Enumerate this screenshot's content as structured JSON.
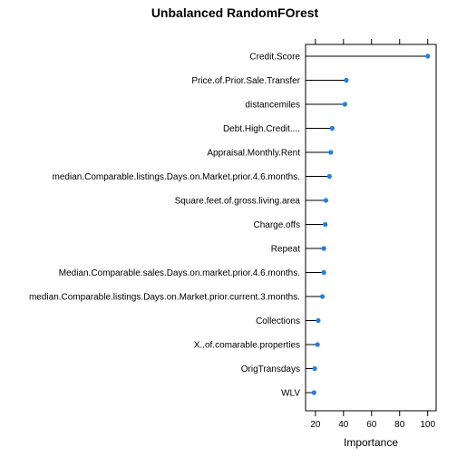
{
  "chart_data": {
    "type": "dotplot",
    "title": "Unbalanced RandomFOrest",
    "xlabel": "Importance",
    "ylabel": "",
    "xlim": [
      13,
      106
    ],
    "xticks": [
      20,
      40,
      60,
      80,
      100
    ],
    "grid": false,
    "legend": "none",
    "point_color": "#1f7fe6",
    "categories": [
      "Credit.Score",
      "Price.of.Prior.Sale.Transfer",
      "distancemiles",
      "Debt.High.Credit....",
      "Appraisal.Monthly.Rent",
      "median.Comparable.listings.Days.on.Market.prior.4.6.months.",
      "Square.feet.of.gross.living.area",
      "Charge.offs",
      "Repeat",
      "Median.Comparable.sales.Days.on.market.prior.4.6.months.",
      "median.Comparable.listings.Days.on.Market.prior.current.3.months.",
      "Collections",
      "X..of.comarable.properties",
      "OrigTransdays",
      "WLV"
    ],
    "values": [
      100,
      42,
      41,
      32,
      31,
      30,
      27.5,
      27,
      26,
      26,
      25,
      22,
      21.5,
      19.5,
      19
    ]
  }
}
